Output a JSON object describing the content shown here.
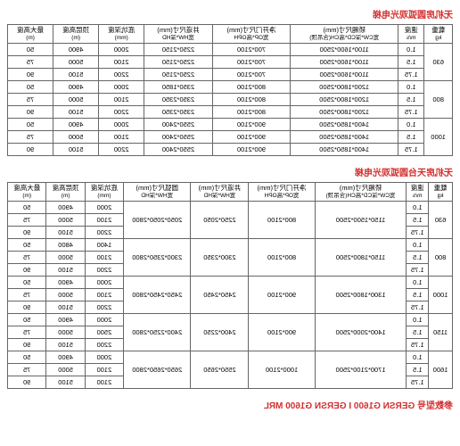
{
  "title1": "无机房圆弧观光电梯",
  "title2": "无机房天台圆弧观光电梯",
  "footer": "参数型号 GERSN G1600 I GERSN G1600 MRL",
  "headers": {
    "load": "载重",
    "load_unit": "kg",
    "speed": "速度",
    "speed_unit": "m/s",
    "car": "轿厢尺寸(mm)",
    "car_sub": "宽CW*深CD*高CH(含吊顶)",
    "door": "净开门尺寸(mm)",
    "door_sub": "宽OP*高OPH",
    "shaft": "井道尺寸(mm)",
    "shaft_sub": "宽HW*深HD",
    "ohround": "圆弧尺寸(mm)",
    "ohround_sub": "宽HW*深HD",
    "pit": "底坑深度",
    "pit_unit": "(mm)",
    "oh": "顶层高度",
    "oh_unit": "(m)",
    "max": "最大高度",
    "max_unit": "(m)"
  },
  "table1": [
    {
      "load": "630",
      "rows": [
        {
          "speed": "1.0",
          "car": "1100*1600*2500",
          "door": "700*2100",
          "shaft": "2250*2150",
          "ohr": "",
          "pit": "2000",
          "oh": "4900",
          "max": "50"
        },
        {
          "speed": "1.5",
          "car": "1100*1600*2500",
          "door": "700*2100",
          "shaft": "2250*2150",
          "ohr": "",
          "pit": "2100",
          "oh": "5000",
          "max": "75"
        },
        {
          "speed": "1.75",
          "car": "1100*1600*2500",
          "door": "700*2100",
          "shaft": "2250*2150",
          "ohr": "",
          "pit": "2200",
          "oh": "5100",
          "max": "90"
        }
      ]
    },
    {
      "load": "800",
      "rows": [
        {
          "speed": "1.0",
          "car": "1200*1800*2500",
          "door": "800*2100",
          "shaft": "2350*1850",
          "ohr": "",
          "pit": "2000",
          "oh": "4900",
          "max": "50"
        },
        {
          "speed": "1.5",
          "car": "1200*1800*2500",
          "door": "800*2100",
          "shaft": "2350*2350",
          "ohr": "",
          "pit": "2100",
          "oh": "5000",
          "max": "75"
        },
        {
          "speed": "1.75",
          "car": "1200*1800*2500",
          "door": "800*2100",
          "shaft": "2350*2350",
          "ohr": "",
          "pit": "2200",
          "oh": "5100",
          "max": "90"
        }
      ]
    },
    {
      "load": "1000",
      "rows": [
        {
          "speed": "1.0",
          "car": "1400*1850*2500",
          "door": "900*2100",
          "shaft": "2550*2400",
          "ohr": "",
          "pit": "2000",
          "oh": "4900",
          "max": "50"
        },
        {
          "speed": "1.5",
          "car": "1400*1850*2500",
          "door": "900*2100",
          "shaft": "2550*2400",
          "ohr": "",
          "pit": "2100",
          "oh": "5000",
          "max": "75"
        },
        {
          "speed": "1.75",
          "car": "1400*1850*2500",
          "door": "900*2100",
          "shaft": "2550*2400",
          "ohr": "",
          "pit": "2200",
          "oh": "5100",
          "max": "90"
        }
      ]
    }
  ],
  "table2": [
    {
      "load": "630",
      "rows": [
        {
          "speed": "1.0",
          "car": "1150*1500*2500",
          "door": "800*2100",
          "shaft": "2250*2050",
          "ohr": "2050*2050*2800",
          "pit": "2000",
          "oh": "4900",
          "max": "50"
        },
        {
          "speed": "1.5",
          "car": "",
          "door": "",
          "shaft": "",
          "ohr": "",
          "pit": "2100",
          "oh": "5000",
          "max": "75"
        },
        {
          "speed": "1.75",
          "car": "",
          "door": "",
          "shaft": "",
          "ohr": "",
          "pit": "2200",
          "oh": "5100",
          "max": "90"
        }
      ]
    },
    {
      "load": "800",
      "rows": [
        {
          "speed": "1.0",
          "car": "1150*1800*2500",
          "door": "800*2100",
          "shaft": "2300*2350",
          "ohr": "2300*2350*2800",
          "pit": "1400",
          "oh": "4800",
          "max": "50"
        },
        {
          "speed": "1.5",
          "car": "",
          "door": "",
          "shaft": "",
          "ohr": "",
          "pit": "2100",
          "oh": "5000",
          "max": "75"
        },
        {
          "speed": "1.75",
          "car": "",
          "door": "",
          "shaft": "",
          "ohr": "",
          "pit": "2200",
          "oh": "5100",
          "max": "90"
        }
      ]
    },
    {
      "load": "1000",
      "rows": [
        {
          "speed": "1.0",
          "car": "1300*1800*2500",
          "door": "900*2100",
          "shaft": "2450*2450",
          "ohr": "2450*2450*2800",
          "pit": "2000",
          "oh": "4900",
          "max": "50"
        },
        {
          "speed": "1.5",
          "car": "",
          "door": "",
          "shaft": "",
          "ohr": "",
          "pit": "2100",
          "oh": "5000",
          "max": "75"
        },
        {
          "speed": "1.75",
          "car": "",
          "door": "",
          "shaft": "",
          "ohr": "",
          "pit": "2200",
          "oh": "5100",
          "max": "90"
        }
      ]
    },
    {
      "load": "1150",
      "rows": [
        {
          "speed": "1.0",
          "car": "1400*2000*2500",
          "door": "900*2100",
          "shaft": "2400*2250",
          "ohr": "2400*2250*2800",
          "pit": "2000",
          "oh": "4900",
          "max": "50"
        },
        {
          "speed": "1.5",
          "car": "",
          "door": "",
          "shaft": "",
          "ohr": "",
          "pit": "2500",
          "oh": "5000",
          "max": "75"
        },
        {
          "speed": "1.75",
          "car": "",
          "door": "",
          "shaft": "",
          "ohr": "",
          "pit": "2200",
          "oh": "5100",
          "max": "90"
        }
      ]
    },
    {
      "load": "1600",
      "rows": [
        {
          "speed": "1.0",
          "car": "1700*2100*2500",
          "door": "1000*2100",
          "shaft": "2550*2650",
          "ohr": "2650*2650*2800",
          "pit": "2000",
          "oh": "4900",
          "max": "50"
        },
        {
          "speed": "1.5",
          "car": "",
          "door": "",
          "shaft": "",
          "ohr": "",
          "pit": "2100",
          "oh": "5000",
          "max": "75"
        },
        {
          "speed": "1.75",
          "car": "",
          "door": "",
          "shaft": "",
          "ohr": "",
          "pit": "2100",
          "oh": "5100",
          "max": "90"
        }
      ]
    }
  ]
}
